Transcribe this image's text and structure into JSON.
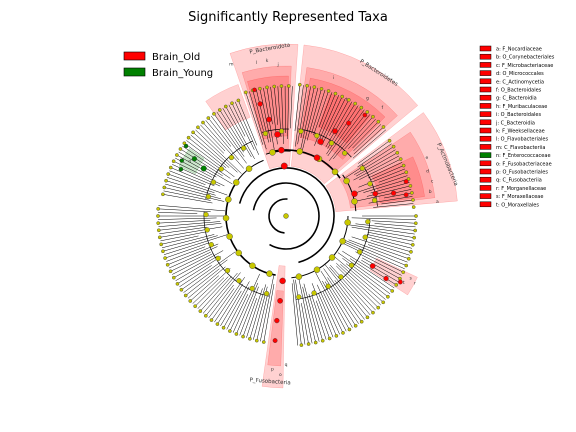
{
  "title": "Significantly Represented Taxa",
  "groups": [
    {
      "name": "Brain_Old",
      "color": "#ff0000"
    },
    {
      "name": "Brain_Young",
      "color": "#008000"
    }
  ],
  "key": [
    {
      "label": "a: F_Nocardiaceae",
      "group": "Brain_Old"
    },
    {
      "label": "b: O_Corynebacteriales",
      "group": "Brain_Old"
    },
    {
      "label": "c: F_Microbacteriaceae",
      "group": "Brain_Old"
    },
    {
      "label": "d: O_Micrococcales",
      "group": "Brain_Old"
    },
    {
      "label": "e: C_Actinomycetia",
      "group": "Brain_Old"
    },
    {
      "label": "f: O_Bacteroidales",
      "group": "Brain_Old"
    },
    {
      "label": "g: C_Bacteroidia",
      "group": "Brain_Old"
    },
    {
      "label": "h: F_Muribaculaceae",
      "group": "Brain_Old"
    },
    {
      "label": "i: O_Bacteroidales",
      "group": "Brain_Old"
    },
    {
      "label": "j: C_Bacteroidia",
      "group": "Brain_Old"
    },
    {
      "label": "k: F_Weeksellaceae",
      "group": "Brain_Old"
    },
    {
      "label": "l: O_Flavobacteriales",
      "group": "Brain_Old"
    },
    {
      "label": "m: C_Flavobacteriia",
      "group": "Brain_Old"
    },
    {
      "label": "n: F_Enterococcaceae",
      "group": "Brain_Young"
    },
    {
      "label": "o: F_Fusobacteriaceae",
      "group": "Brain_Old"
    },
    {
      "label": "p: O_Fusobacteriales",
      "group": "Brain_Old"
    },
    {
      "label": "q: C_Fusobacteriia",
      "group": "Brain_Old"
    },
    {
      "label": "r: F_Morganellaceae",
      "group": "Brain_Old"
    },
    {
      "label": "s: F_Moraxellaceae",
      "group": "Brain_Old"
    },
    {
      "label": "t: O_Moraxellales",
      "group": "Brain_Old"
    }
  ],
  "phylum_labels": [
    {
      "text": "P_Bacteroidota"
    },
    {
      "text": "P_Bacteroidetes"
    },
    {
      "text": "P_Actinobacteria"
    },
    {
      "text": "P_Fusobacteria"
    }
  ],
  "clade_letters": [
    "l",
    "k",
    "j",
    "i",
    "h",
    "g",
    "f",
    "e",
    "d",
    "c",
    "b",
    "a",
    "m",
    "n",
    "o",
    "p",
    "q",
    "r",
    "s",
    "t"
  ],
  "colors": {
    "old": "#ff0000",
    "young": "#008000",
    "neutral": "#c8c800"
  }
}
